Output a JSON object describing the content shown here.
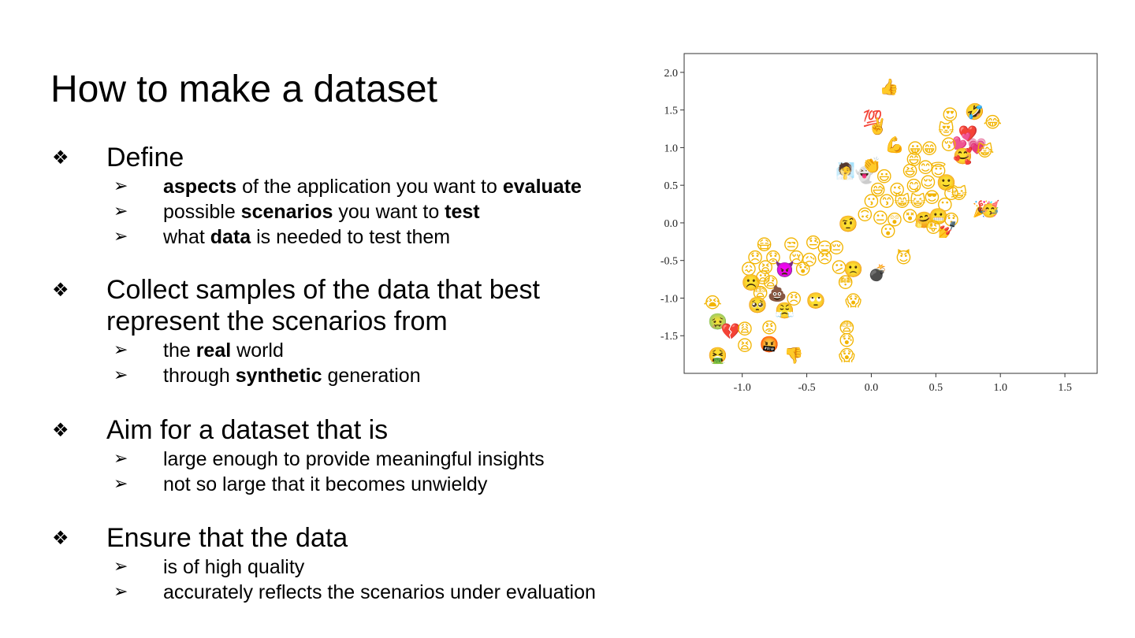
{
  "slide": {
    "title": "How to make a dataset",
    "bullet_major": "❖",
    "bullet_minor": "➢",
    "sections": [
      {
        "heading_lines": [
          "Define"
        ],
        "items": [
          [
            {
              "t": "aspects",
              "b": true
            },
            {
              "t": " of the application you want to ",
              "b": false
            },
            {
              "t": "evaluate",
              "b": true
            }
          ],
          [
            {
              "t": "possible ",
              "b": false
            },
            {
              "t": "scenarios",
              "b": true
            },
            {
              "t": " you want to ",
              "b": false
            },
            {
              "t": "test",
              "b": true
            }
          ],
          [
            {
              "t": "what ",
              "b": false
            },
            {
              "t": "data",
              "b": true
            },
            {
              "t": " is needed to test them",
              "b": false
            }
          ]
        ]
      },
      {
        "heading_lines": [
          "Collect samples of the data that best",
          "represent the scenarios from"
        ],
        "items": [
          [
            {
              "t": "the ",
              "b": false
            },
            {
              "t": "real",
              "b": true
            },
            {
              "t": " world",
              "b": false
            }
          ],
          [
            {
              "t": "through ",
              "b": false
            },
            {
              "t": "synthetic",
              "b": true
            },
            {
              "t": " generation",
              "b": false
            }
          ]
        ]
      },
      {
        "heading_lines": [
          "Aim for a dataset that is"
        ],
        "items": [
          [
            {
              "t": "large enough to provide meaningful insights",
              "b": false
            }
          ],
          [
            {
              "t": "not so large that it becomes unwieldy",
              "b": false
            }
          ]
        ]
      },
      {
        "heading_lines": [
          "Ensure that the data"
        ],
        "items": [
          [
            {
              "t": "is of high quality",
              "b": false
            }
          ],
          [
            {
              "t": "accurately reflects the scenarios under evaluation",
              "b": false
            }
          ]
        ]
      }
    ]
  },
  "chart_data": {
    "type": "scatter",
    "xlim": [
      -1.45,
      1.75
    ],
    "ylim": [
      -2.0,
      2.25
    ],
    "x_ticks": [
      "-1.0",
      "-0.5",
      "0.0",
      "0.5",
      "1.0",
      "1.5"
    ],
    "y_ticks": [
      "2.0",
      "1.5",
      "1.0",
      "0.5",
      "0.0",
      "-0.5",
      "-1.0",
      "-1.5"
    ],
    "grid": false,
    "points": [
      {
        "x": 0.14,
        "y": 1.82,
        "e": "👍"
      },
      {
        "x": 0.01,
        "y": 1.4,
        "e": "💯"
      },
      {
        "x": 0.05,
        "y": 1.3,
        "e": "✌️"
      },
      {
        "x": 0.61,
        "y": 1.45,
        "e": "😍"
      },
      {
        "x": 0.8,
        "y": 1.49,
        "e": "🤣"
      },
      {
        "x": 0.94,
        "y": 1.35,
        "e": "😂"
      },
      {
        "x": 0.58,
        "y": 1.25,
        "e": "😻"
      },
      {
        "x": 0.75,
        "y": 1.2,
        "e": "❤️"
      },
      {
        "x": 0.7,
        "y": 1.1,
        "e": "💕"
      },
      {
        "x": 0.6,
        "y": 1.05,
        "e": "😚"
      },
      {
        "x": 0.82,
        "y": 1.03,
        "e": "💗"
      },
      {
        "x": 0.71,
        "y": 0.9,
        "e": "🥰"
      },
      {
        "x": 0.88,
        "y": 0.97,
        "e": "😹"
      },
      {
        "x": 0.18,
        "y": 1.05,
        "e": "💪"
      },
      {
        "x": 0.34,
        "y": 1.0,
        "e": "😀"
      },
      {
        "x": 0.45,
        "y": 1.0,
        "e": "😁"
      },
      {
        "x": 0.33,
        "y": 0.85,
        "e": "😄"
      },
      {
        "x": -0.2,
        "y": 0.7,
        "e": "🧖"
      },
      {
        "x": -0.05,
        "y": 0.65,
        "e": "👻"
      },
      {
        "x": 0.0,
        "y": 0.78,
        "e": "👏"
      },
      {
        "x": 0.1,
        "y": 0.63,
        "e": "😃"
      },
      {
        "x": 0.3,
        "y": 0.7,
        "e": "😆"
      },
      {
        "x": 0.42,
        "y": 0.75,
        "e": "😊"
      },
      {
        "x": 0.52,
        "y": 0.7,
        "e": "😇"
      },
      {
        "x": 0.58,
        "y": 0.55,
        "e": "🙂"
      },
      {
        "x": 0.05,
        "y": 0.45,
        "e": "😅"
      },
      {
        "x": 0.2,
        "y": 0.45,
        "e": "😉"
      },
      {
        "x": 0.33,
        "y": 0.5,
        "e": "😋"
      },
      {
        "x": 0.44,
        "y": 0.55,
        "e": "😌"
      },
      {
        "x": 0.62,
        "y": 0.4,
        "e": "😏"
      },
      {
        "x": 0.0,
        "y": 0.3,
        "e": "😗"
      },
      {
        "x": 0.12,
        "y": 0.3,
        "e": "😙"
      },
      {
        "x": 0.24,
        "y": 0.3,
        "e": "😸"
      },
      {
        "x": 0.36,
        "y": 0.3,
        "e": "😺"
      },
      {
        "x": 0.47,
        "y": 0.35,
        "e": "😎"
      },
      {
        "x": 0.57,
        "y": 0.25,
        "e": "😶"
      },
      {
        "x": 0.68,
        "y": 0.4,
        "e": "😺"
      },
      {
        "x": 0.86,
        "y": 0.2,
        "e": "🎉"
      },
      {
        "x": 0.92,
        "y": 0.2,
        "e": "🥳"
      },
      {
        "x": -0.18,
        "y": 0.0,
        "e": "🤨"
      },
      {
        "x": -0.05,
        "y": 0.12,
        "e": "🙃"
      },
      {
        "x": 0.07,
        "y": 0.08,
        "e": "😐"
      },
      {
        "x": 0.18,
        "y": 0.05,
        "e": "😲"
      },
      {
        "x": 0.3,
        "y": 0.1,
        "e": "😵"
      },
      {
        "x": 0.41,
        "y": 0.05,
        "e": "🤗"
      },
      {
        "x": 0.52,
        "y": 0.1,
        "e": "😬"
      },
      {
        "x": 0.62,
        "y": 0.05,
        "e": "😯"
      },
      {
        "x": 0.13,
        "y": -0.1,
        "e": "😮"
      },
      {
        "x": 0.48,
        "y": -0.05,
        "e": "😜"
      },
      {
        "x": 0.59,
        "y": -0.08,
        "e": "💅"
      },
      {
        "x": 0.25,
        "y": -0.45,
        "e": "😈"
      },
      {
        "x": 0.05,
        "y": -0.65,
        "e": "💣"
      },
      {
        "x": -0.83,
        "y": -0.28,
        "e": "😷"
      },
      {
        "x": -0.62,
        "y": -0.28,
        "e": "😒"
      },
      {
        "x": -0.45,
        "y": -0.25,
        "e": "😓"
      },
      {
        "x": -0.36,
        "y": -0.32,
        "e": "😑"
      },
      {
        "x": -0.27,
        "y": -0.32,
        "e": "😔"
      },
      {
        "x": -0.9,
        "y": -0.45,
        "e": "😞"
      },
      {
        "x": -0.76,
        "y": -0.45,
        "e": "😟"
      },
      {
        "x": -0.58,
        "y": -0.45,
        "e": "😢"
      },
      {
        "x": -0.48,
        "y": -0.48,
        "e": "😥"
      },
      {
        "x": -0.36,
        "y": -0.45,
        "e": "😣"
      },
      {
        "x": -0.95,
        "y": -0.6,
        "e": "😖"
      },
      {
        "x": -0.82,
        "y": -0.58,
        "e": "😫"
      },
      {
        "x": -0.67,
        "y": -0.6,
        "e": "👿"
      },
      {
        "x": -0.53,
        "y": -0.6,
        "e": "😰"
      },
      {
        "x": -0.25,
        "y": -0.58,
        "e": "😕"
      },
      {
        "x": -0.14,
        "y": -0.6,
        "e": "🙁"
      },
      {
        "x": -0.93,
        "y": -0.78,
        "e": "☹️"
      },
      {
        "x": -0.84,
        "y": -0.72,
        "e": "😦"
      },
      {
        "x": -0.78,
        "y": -0.78,
        "e": "😧"
      },
      {
        "x": -0.2,
        "y": -0.78,
        "e": "😳"
      },
      {
        "x": -0.86,
        "y": -0.92,
        "e": "😨"
      },
      {
        "x": -0.73,
        "y": -0.92,
        "e": "💩"
      },
      {
        "x": -0.6,
        "y": -1.0,
        "e": "😠"
      },
      {
        "x": -0.43,
        "y": -1.02,
        "e": "🙄"
      },
      {
        "x": -0.14,
        "y": -1.02,
        "e": "😱"
      },
      {
        "x": -1.23,
        "y": -1.05,
        "e": "😭"
      },
      {
        "x": -0.88,
        "y": -1.08,
        "e": "🥺"
      },
      {
        "x": -0.67,
        "y": -1.15,
        "e": "😤"
      },
      {
        "x": -1.19,
        "y": -1.3,
        "e": "🤢"
      },
      {
        "x": -1.09,
        "y": -1.43,
        "e": "💔"
      },
      {
        "x": -0.98,
        "y": -1.4,
        "e": "😩"
      },
      {
        "x": -0.79,
        "y": -1.38,
        "e": "😡"
      },
      {
        "x": -0.98,
        "y": -1.62,
        "e": "😫"
      },
      {
        "x": -0.79,
        "y": -1.6,
        "e": "🤬"
      },
      {
        "x": -1.19,
        "y": -1.75,
        "e": "🤮"
      },
      {
        "x": -0.6,
        "y": -1.75,
        "e": "👎"
      },
      {
        "x": -0.19,
        "y": -1.38,
        "e": "😨"
      },
      {
        "x": -0.19,
        "y": -1.55,
        "e": "😰"
      },
      {
        "x": -0.19,
        "y": -1.75,
        "e": "😱"
      }
    ]
  }
}
